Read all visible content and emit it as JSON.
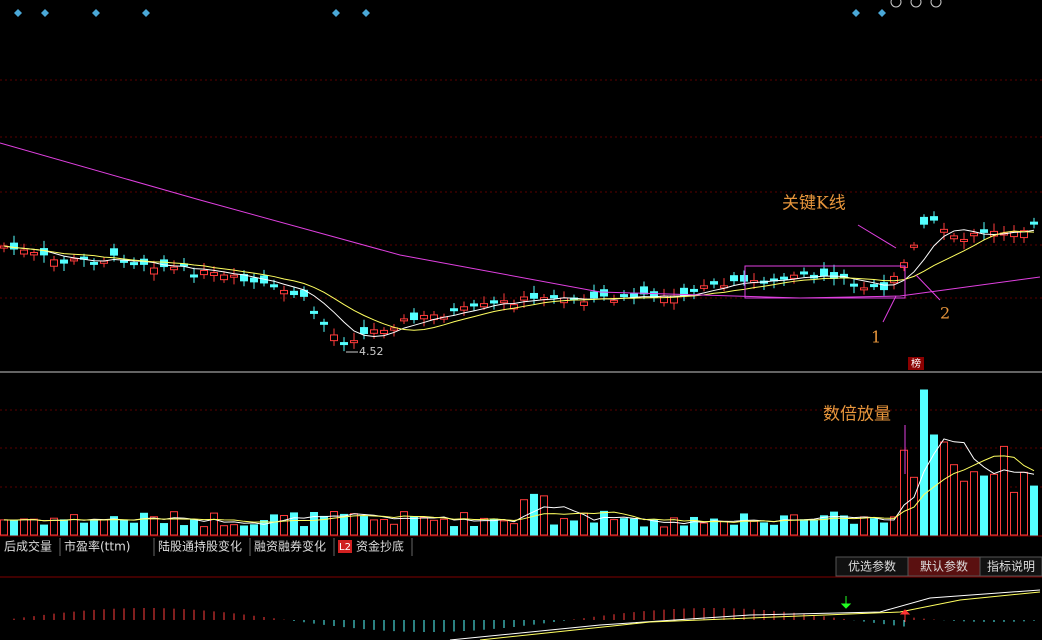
{
  "annotations": {
    "key_candle": "关键K线",
    "volume_note": "数倍放量",
    "mark_1": "1",
    "mark_2": "2",
    "low_price": "4.52",
    "rank_badge": "榜"
  },
  "tabs": [
    "后成交量",
    "市盈率(ttm)",
    "陆股通持股变化",
    "融资融券变化",
    "L2",
    "资金抄底"
  ],
  "buttons": [
    "优选参数",
    "默认参数",
    "指标说明"
  ]
}
